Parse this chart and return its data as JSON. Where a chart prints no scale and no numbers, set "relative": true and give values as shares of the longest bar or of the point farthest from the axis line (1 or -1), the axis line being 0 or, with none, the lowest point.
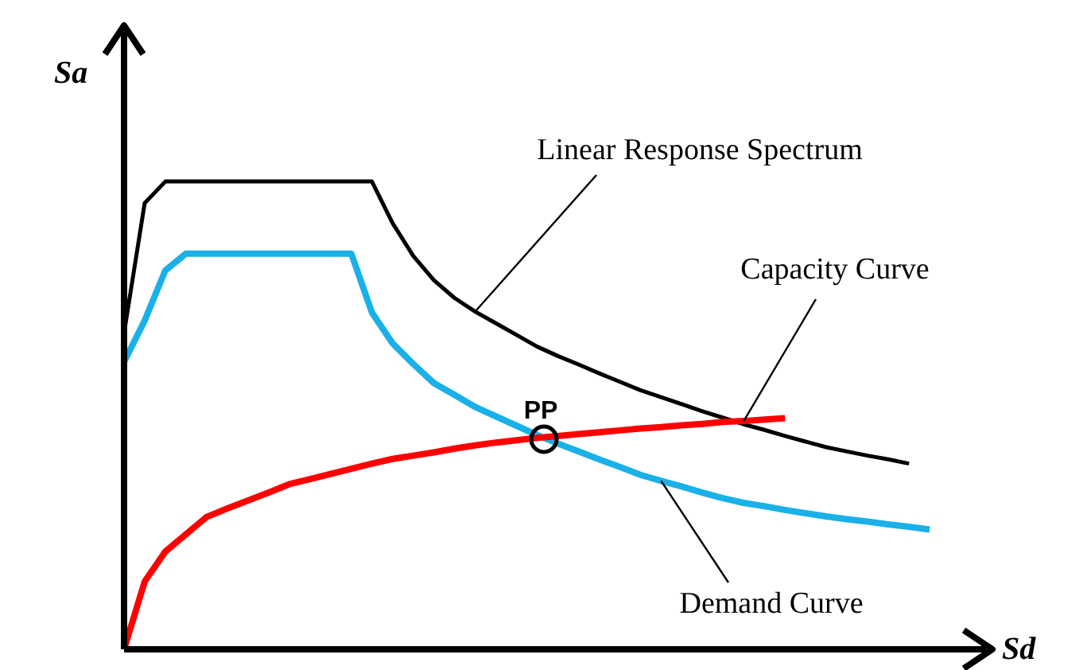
{
  "chart_data": {
    "type": "line",
    "relative": true,
    "xlabel": "Sd",
    "ylabel": "Sa",
    "marker": "none",
    "categories": [
      null,
      null,
      null,
      null,
      null,
      null,
      null,
      null,
      null,
      null,
      null,
      null,
      null,
      null,
      null,
      null,
      null,
      null,
      null,
      null,
      null,
      null,
      null,
      null,
      null,
      null,
      null,
      null,
      null,
      null,
      null,
      null,
      null,
      null,
      null,
      null,
      null,
      null,
      null,
      null
    ],
    "series": [
      {
        "name": "Linear Response Spectrum",
        "color": "#000000",
        "values": [
          0.676,
          0.954,
          1,
          1,
          1,
          1,
          1,
          1,
          1,
          1,
          1,
          1,
          1,
          0.911,
          0.841,
          0.789,
          0.751,
          0.722,
          0.697,
          0.672,
          0.647,
          0.627,
          0.609,
          0.59,
          0.572,
          0.554,
          0.539,
          0.524,
          0.509,
          0.495,
          0.481,
          0.469,
          0.456,
          0.444,
          0.432,
          0.423,
          0.414,
          0.406,
          0.397,
          null
        ]
      },
      {
        "name": "Demand Curve",
        "color": "#1ab0e8",
        "values": [
          0.614,
          0.703,
          0.81,
          0.846,
          0.846,
          0.846,
          0.846,
          0.846,
          0.846,
          0.846,
          0.846,
          0.846,
          0.72,
          0.654,
          0.61,
          0.569,
          0.544,
          0.518,
          0.498,
          0.478,
          0.458,
          0.44,
          0.423,
          0.406,
          0.39,
          0.373,
          0.36,
          0.348,
          0.335,
          0.323,
          0.313,
          0.306,
          0.298,
          0.291,
          0.284,
          0.278,
          0.273,
          0.267,
          0.262,
          0.256
        ]
      },
      {
        "name": "Capacity Curve",
        "color": "#ff0000",
        "values": [
          0,
          0.145,
          0.209,
          0.246,
          0.283,
          0.301,
          0.318,
          0.335,
          0.353,
          0.364,
          0.375,
          0.386,
          0.397,
          0.407,
          0.414,
          0.421,
          0.429,
          0.436,
          0.442,
          0.447,
          0.452,
          0.456,
          0.46,
          0.464,
          0.468,
          0.472,
          0.475,
          0.479,
          0.482,
          0.486,
          0.488,
          0.491,
          0.494,
          null,
          null,
          null,
          null,
          null,
          null,
          null
        ]
      }
    ],
    "annotations": [
      "PP"
    ]
  }
}
